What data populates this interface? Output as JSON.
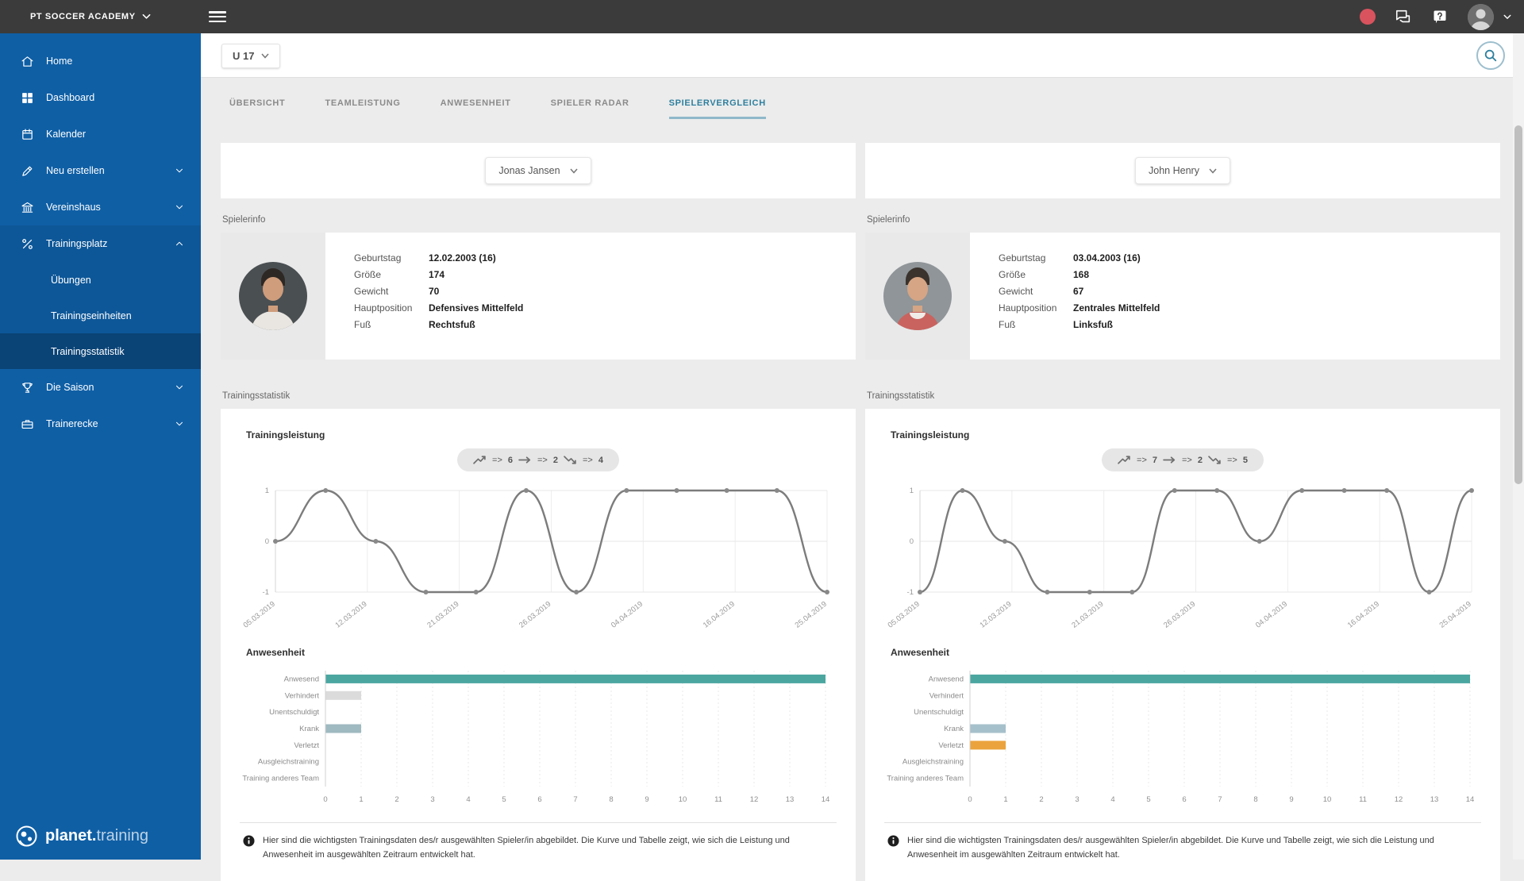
{
  "topbar": {
    "org_label": "PT SOCCER ACADEMY"
  },
  "sidebar": {
    "items": [
      {
        "label": "Home"
      },
      {
        "label": "Dashboard"
      },
      {
        "label": "Kalender"
      },
      {
        "label": "Neu erstellen"
      },
      {
        "label": "Vereinshaus"
      },
      {
        "label": "Trainingsplatz"
      },
      {
        "label": "Die Saison"
      },
      {
        "label": "Trainerecke"
      }
    ],
    "sub_items": [
      {
        "label": "Übungen"
      },
      {
        "label": "Trainingseinheiten"
      },
      {
        "label": "Trainingsstatistik"
      }
    ],
    "logo_bold": "planet.",
    "logo_light": "training"
  },
  "toolbar": {
    "team_label": "U 17"
  },
  "tabs": [
    {
      "label": "ÜBERSICHT"
    },
    {
      "label": "TEAMLEISTUNG"
    },
    {
      "label": "ANWESENHEIT"
    },
    {
      "label": "SPIELER RADAR"
    },
    {
      "label": "SPIELERVERGLEICH"
    }
  ],
  "sections": {
    "player_info": "Spielerinfo",
    "training_stats": "Trainingsstatistik"
  },
  "footnote": "Hier sind die wichtigsten Trainingsdaten des/r ausgewählten Spieler/in abgebildet. Die Kurve und Tabelle zeigt, wie sich die Leistung und Anwesenheit im ausgewählten Zeitraum entwickelt hat.",
  "colors": {
    "sidebar_blue": "#0f5fa5",
    "accent_teal": "#4BA6A0",
    "orange": "#EBA33D",
    "tab_active": "#2e7f9e",
    "line_gray": "#7c7c7c"
  },
  "players": [
    {
      "name": "Jonas Jansen",
      "info": [
        {
          "label": "Geburtstag",
          "value": "12.02.2003 (16)"
        },
        {
          "label": "Größe",
          "value": "174"
        },
        {
          "label": "Gewicht",
          "value": "70"
        },
        {
          "label": "Hauptposition",
          "value": "Defensives Mittelfeld"
        },
        {
          "label": "Fuß",
          "value": "Rechtsfuß"
        }
      ],
      "performance": {
        "title": "Trainingsleistung",
        "summary": [
          {
            "sep": "=>",
            "count": "6"
          },
          {
            "sep": "=>",
            "count": "2"
          },
          {
            "sep": "=>",
            "count": "4"
          }
        ],
        "chart": {
          "type": "line",
          "dates": [
            "05.03.2019",
            "12.03.2019",
            "21.03.2019",
            "26.03.2019",
            "04.04.2019",
            "16.04.2019",
            "25.04.2019"
          ],
          "values": [
            0,
            1,
            0,
            -1,
            -1,
            1,
            -1,
            1,
            1,
            1,
            1,
            -1
          ],
          "yticks": [
            1,
            0,
            -1
          ],
          "ylim": [
            -1,
            1
          ]
        }
      },
      "attendance": {
        "title": "Anwesenheit",
        "chart": {
          "type": "bar",
          "categories": [
            "Anwesend",
            "Verhindert",
            "Unentschuldigt",
            "Krank",
            "Verletzt",
            "Ausgleichstraining",
            "Training anderes Team"
          ],
          "values": [
            14,
            1,
            0,
            1,
            0,
            0,
            0
          ],
          "colors": [
            "#4BA6A0",
            "#DBDBDB",
            "#DBDBDB",
            "#9FBAC0",
            "#EBA33D",
            "#DBDBDB",
            "#DBDBDB"
          ],
          "xmax": 14
        }
      }
    },
    {
      "name": "John Henry",
      "info": [
        {
          "label": "Geburtstag",
          "value": "03.04.2003 (16)"
        },
        {
          "label": "Größe",
          "value": "168"
        },
        {
          "label": "Gewicht",
          "value": "67"
        },
        {
          "label": "Hauptposition",
          "value": "Zentrales Mittelfeld"
        },
        {
          "label": "Fuß",
          "value": "Linksfuß"
        }
      ],
      "performance": {
        "title": "Trainingsleistung",
        "summary": [
          {
            "sep": "=>",
            "count": "7"
          },
          {
            "sep": "=>",
            "count": "2"
          },
          {
            "sep": "=>",
            "count": "5"
          }
        ],
        "chart": {
          "type": "line",
          "dates": [
            "05.03.2019",
            "12.03.2019",
            "21.03.2019",
            "26.03.2019",
            "04.04.2019",
            "16.04.2019",
            "25.04.2019"
          ],
          "values": [
            -1,
            1,
            0,
            -1,
            -1,
            -1,
            1,
            1,
            0,
            1,
            1,
            1,
            -1,
            1
          ],
          "yticks": [
            1,
            0,
            -1
          ],
          "ylim": [
            -1,
            1
          ]
        }
      },
      "attendance": {
        "title": "Anwesenheit",
        "chart": {
          "type": "bar",
          "categories": [
            "Anwesend",
            "Verhindert",
            "Unentschuldigt",
            "Krank",
            "Verletzt",
            "Ausgleichstraining",
            "Training anderes Team"
          ],
          "values": [
            14,
            0,
            0,
            1,
            1,
            0,
            0
          ],
          "colors": [
            "#4BA6A0",
            "#DBDBDB",
            "#DBDBDB",
            "#A6C0CB",
            "#EBA33D",
            "#DBDBDB",
            "#DBDBDB"
          ],
          "xmax": 14
        }
      }
    }
  ]
}
